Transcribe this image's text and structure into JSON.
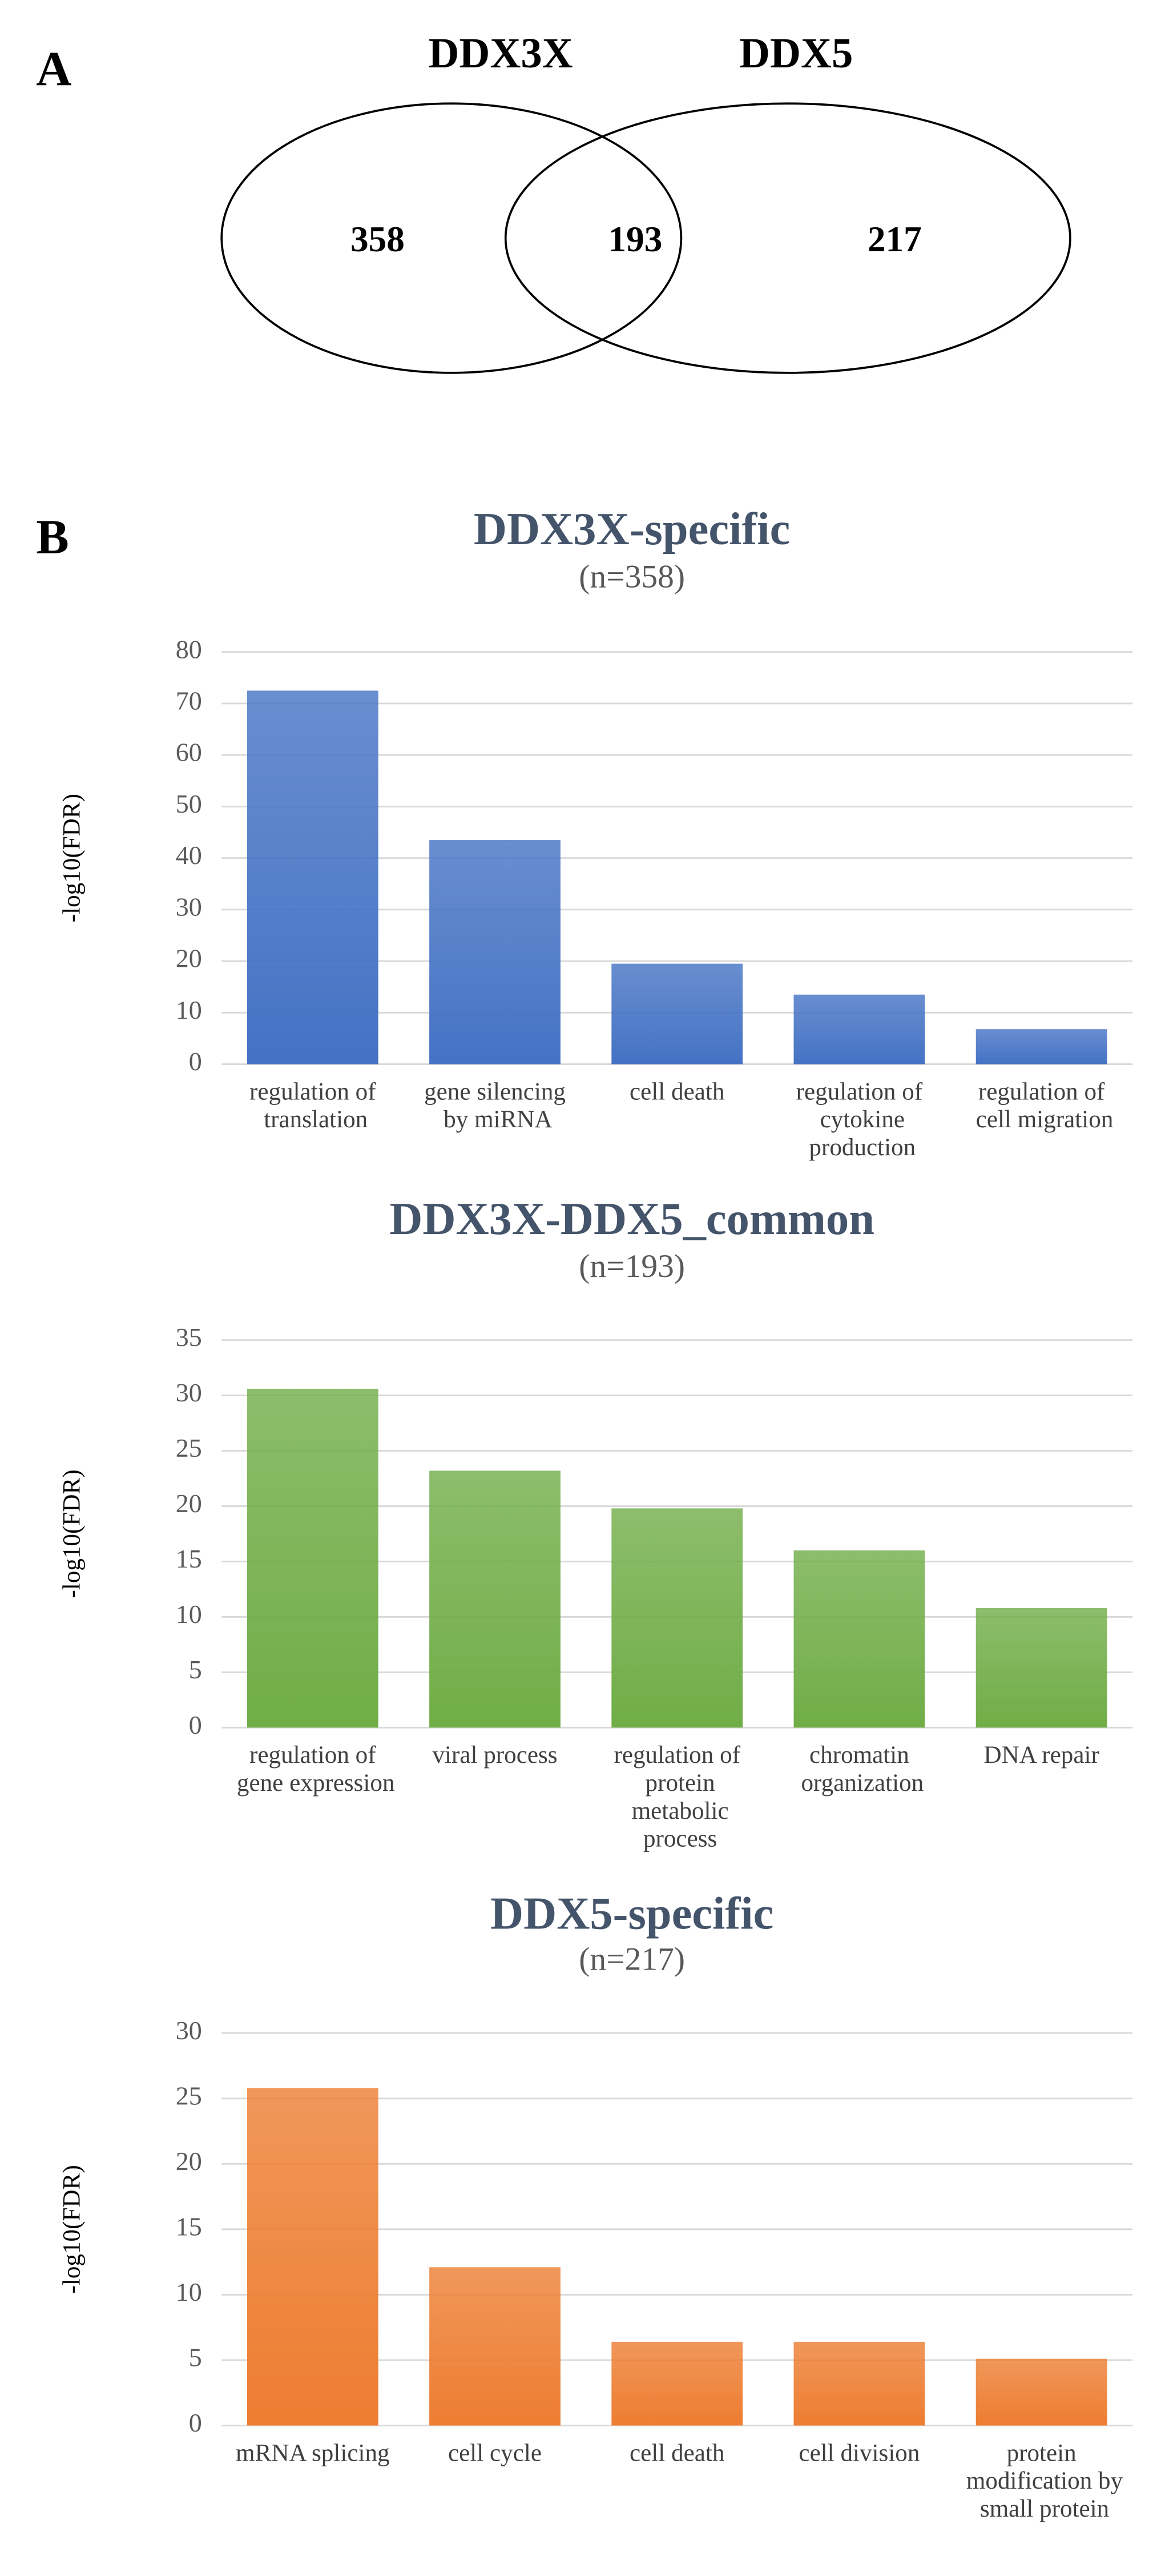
{
  "chart_data": [
    {
      "type": "venn",
      "panel_label": "A",
      "sets": [
        "DDX3X",
        "DDX5"
      ],
      "values": [
        358,
        193,
        217
      ]
    },
    {
      "type": "bar",
      "panel_label": "B",
      "title": "DDX3X-specific",
      "subtitle": "(n=358)",
      "y_label": "-log10(FDR)",
      "categories": [
        "regulation of translation",
        "gene silencing by miRNA",
        "cell death",
        "regulation of cytokine production",
        "regulation of cell migration"
      ],
      "values": [
        72.5,
        43.5,
        19.5,
        13.5,
        6.8
      ],
      "color": "#4472c4",
      "ylim": [
        0,
        80
      ],
      "yticks": [
        0,
        10,
        20,
        30,
        40,
        50,
        60,
        70,
        80
      ],
      "grid": true
    },
    {
      "type": "bar",
      "title": "DDX3X-DDX5_common",
      "subtitle": "(n=193)",
      "y_label": "-log10(FDR)",
      "categories": [
        "regulation of gene expression",
        "viral process",
        "regulation of protein metabolic process",
        "chromatin organization",
        "DNA repair"
      ],
      "values": [
        30.6,
        23.2,
        19.8,
        16,
        10.8
      ],
      "color": "#70ad47",
      "ylim": [
        0,
        35
      ],
      "yticks": [
        0,
        5,
        10,
        15,
        20,
        25,
        30,
        35
      ],
      "grid": true
    },
    {
      "type": "bar",
      "title": "DDX5-specific",
      "subtitle": "(n=217)",
      "y_label": "-log10(FDR)",
      "categories": [
        "mRNA splicing",
        "cell cycle",
        "cell death",
        "cell division",
        "protein modification by small protein"
      ],
      "values": [
        25.8,
        12.1,
        6.4,
        6.4,
        5.1
      ],
      "color": "#ed7d31",
      "ylim": [
        0,
        30
      ],
      "yticks": [
        0,
        5,
        10,
        15,
        20,
        25,
        30
      ],
      "grid": true
    }
  ]
}
